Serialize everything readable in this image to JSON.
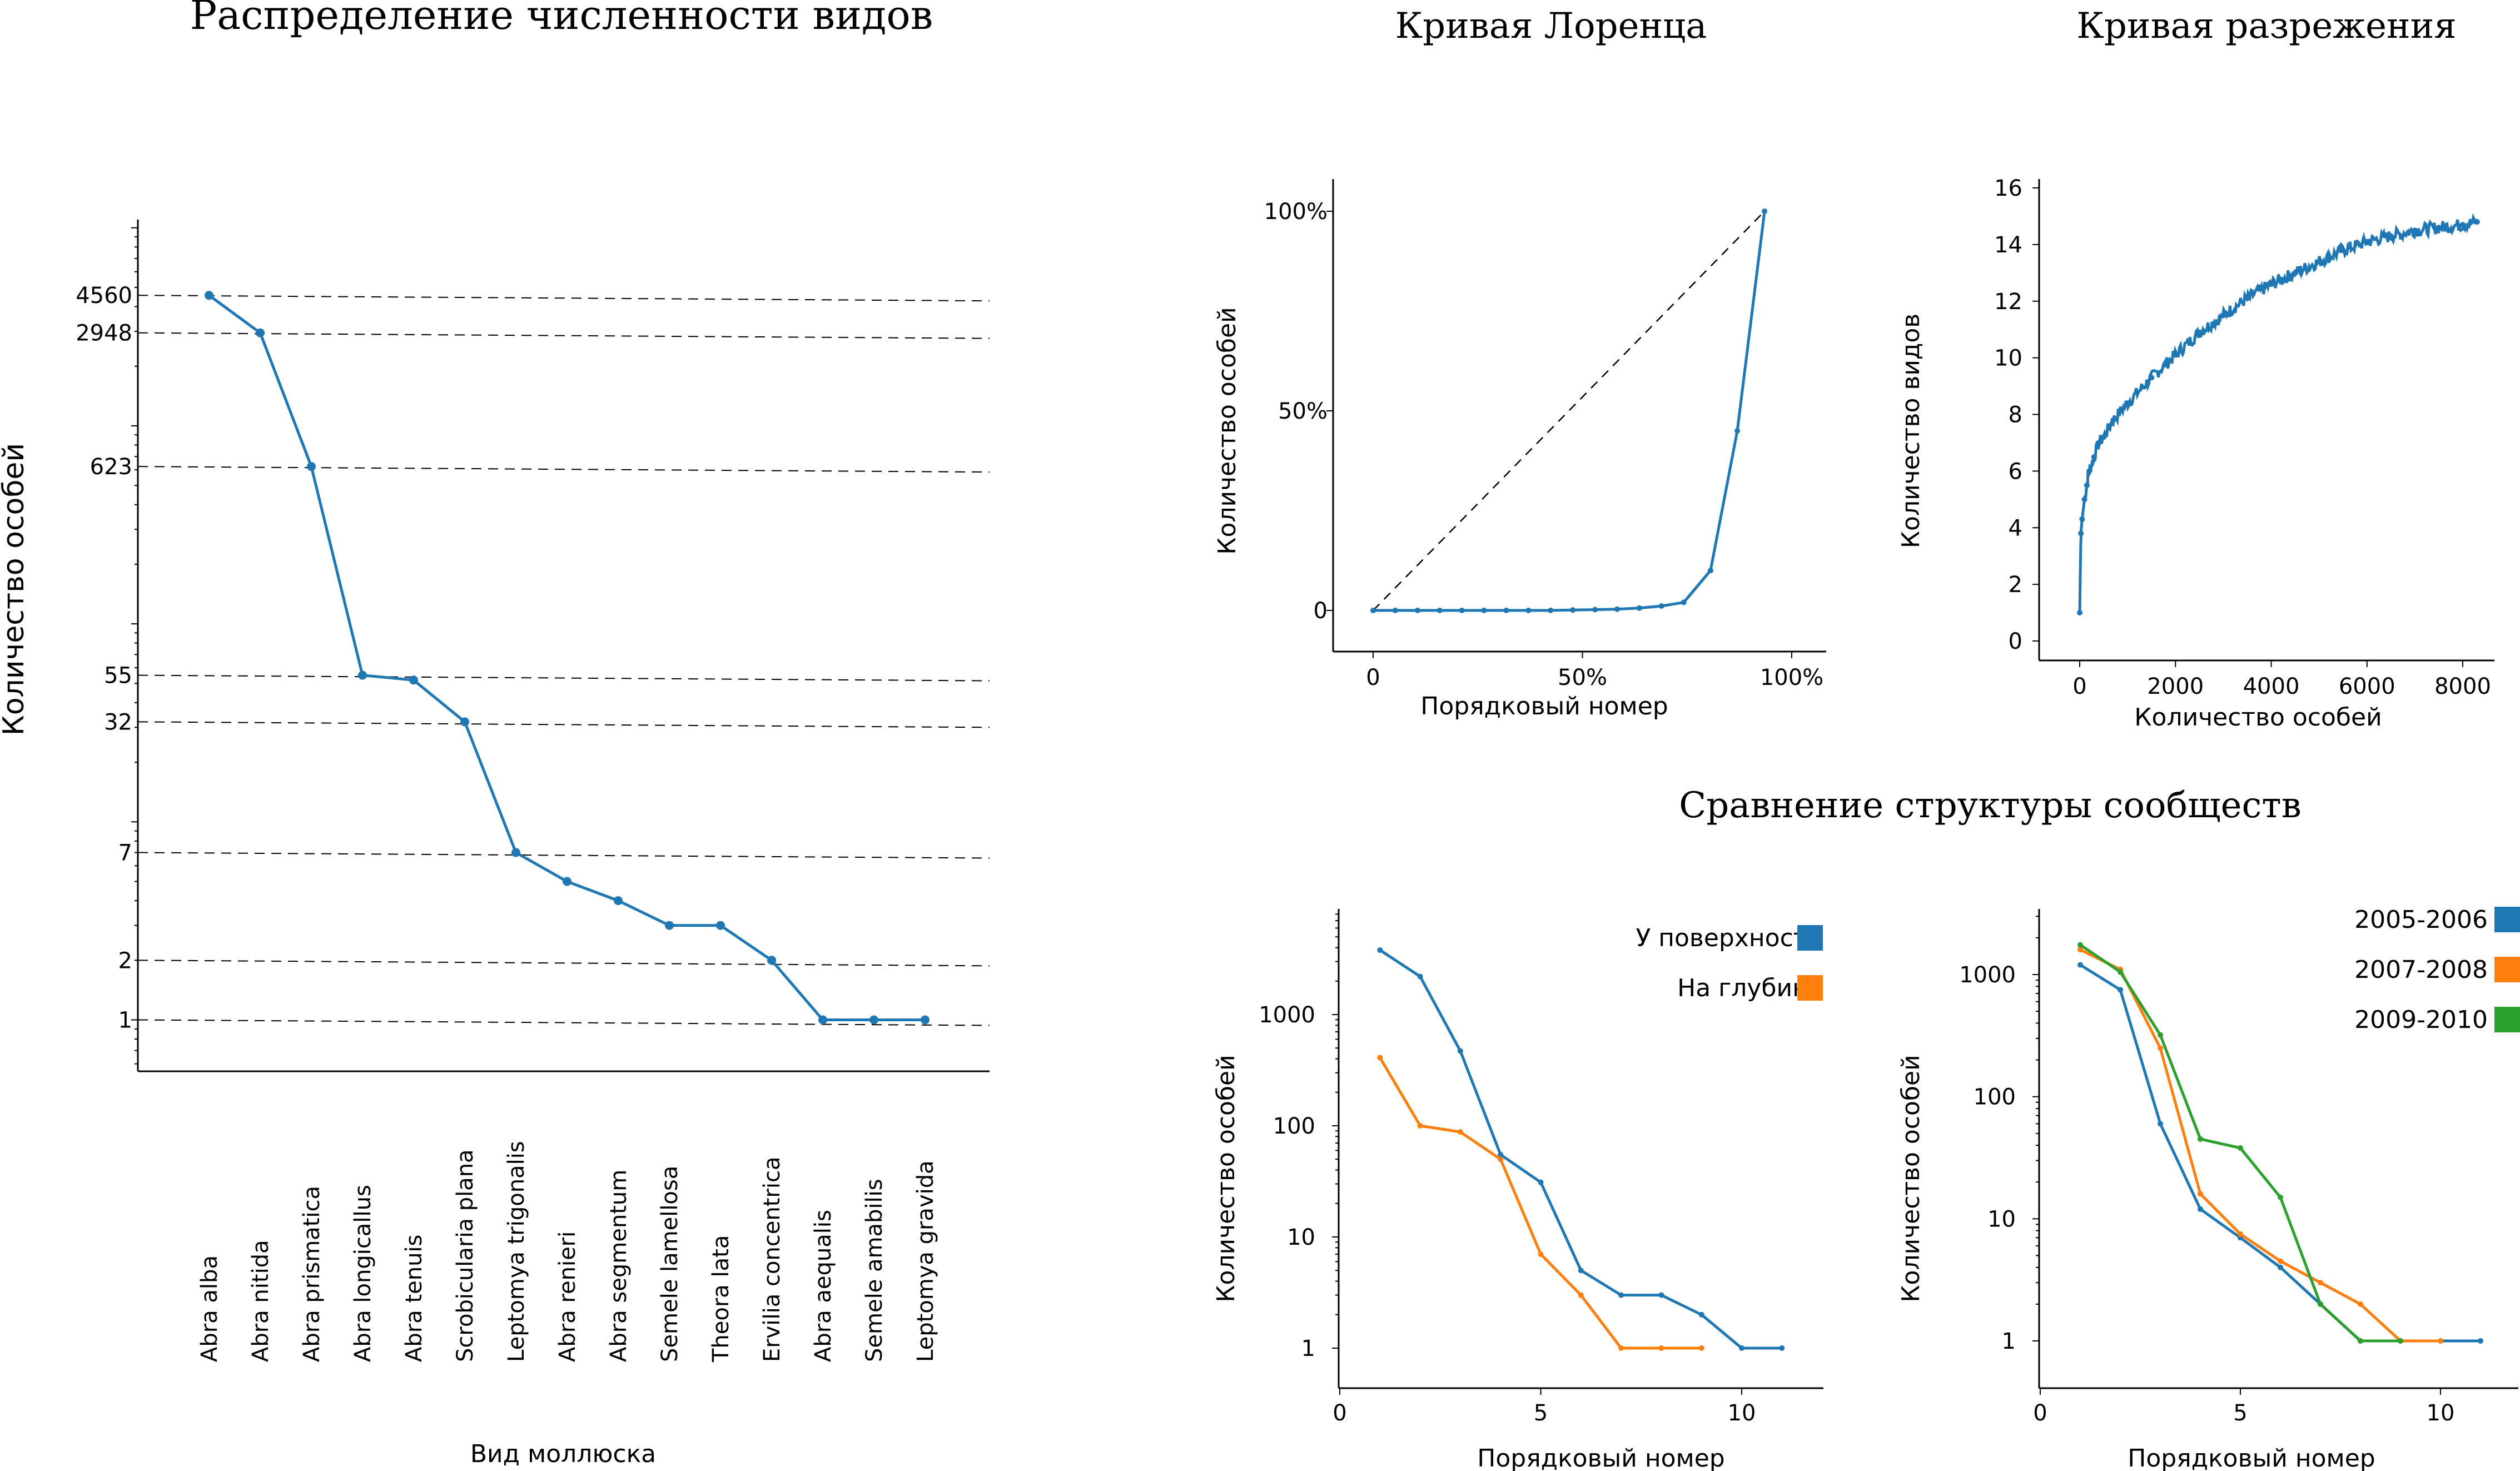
{
  "chart_data": [
    {
      "id": "abundance",
      "type": "line",
      "title": "Распределение численности видов",
      "xlabel": "Вид моллюска",
      "ylabel": "Количество особей",
      "categories": [
        "Abra alba",
        "Abra nitida",
        "Abra prismatica",
        "Abra longicallus",
        "Abra tenuis",
        "Scrobicularia plana",
        "Leptomya trigonalis",
        "Abra renieri",
        "Abra segmentum",
        "Semele lamellosa",
        "Theora lata",
        "Ervilia concentrica",
        "Abra aequalis",
        "Semele amabilis",
        "Leptomya gravida"
      ],
      "values": [
        4560,
        2948,
        623,
        55,
        52,
        32,
        7,
        5,
        4,
        3,
        3,
        2,
        1,
        1,
        1
      ],
      "yscale": "log",
      "yticks": [
        1,
        2,
        7,
        32,
        55,
        623,
        2948,
        4560
      ],
      "ytick_labels": [
        "1",
        "2",
        "7",
        "32",
        "55",
        "623",
        "2948",
        "4560"
      ],
      "grid": "dashed reference lines at labeled values"
    },
    {
      "id": "lorenz",
      "type": "line",
      "title": "Кривая Лоренца",
      "xlabel": "Порядковый номер",
      "ylabel": "Количество особей",
      "x": [
        0,
        0.053,
        0.106,
        0.159,
        0.212,
        0.265,
        0.318,
        0.371,
        0.424,
        0.477,
        0.53,
        0.583,
        0.636,
        0.689,
        0.742,
        0.806,
        0.87,
        0.935
      ],
      "y": [
        0,
        0,
        0,
        0,
        0,
        0,
        0,
        0,
        0,
        0.001,
        0.002,
        0.003,
        0.006,
        0.011,
        0.02,
        0.1,
        0.45,
        1.0
      ],
      "reference_line": "dashed diagonal",
      "xticks": [
        "0",
        "50%",
        "100%"
      ],
      "yticks": [
        "0",
        "50%",
        "100%"
      ]
    },
    {
      "id": "rarefaction",
      "type": "line",
      "title": "Кривая разрежения",
      "xlabel": "Количество особей",
      "ylabel": "Количество видов",
      "x": [
        1,
        25,
        50,
        100,
        150,
        200,
        300,
        400,
        500,
        700,
        1000,
        1500,
        2000,
        2500,
        3000,
        3500,
        4000,
        4500,
        5000,
        5500,
        6000,
        6500,
        7000,
        7500,
        8000,
        8300
      ],
      "y": [
        1,
        3.8,
        4.3,
        5.0,
        5.5,
        6.0,
        6.5,
        7.0,
        7.2,
        7.8,
        8.4,
        9.3,
        10.1,
        10.9,
        11.5,
        12.1,
        12.6,
        13.0,
        13.4,
        13.8,
        14.1,
        14.3,
        14.5,
        14.6,
        14.7,
        14.8
      ],
      "xticks": [
        0,
        2000,
        4000,
        6000,
        8000
      ],
      "yticks": [
        0,
        2,
        4,
        6,
        8,
        10,
        12,
        14,
        16
      ]
    },
    {
      "id": "compare_depth",
      "type": "line",
      "group_title": "Сравнение структуры сообществ",
      "xlabel": "Порядковый номер",
      "ylabel": "Количество особей",
      "yscale": "log",
      "xticks": [
        0,
        5,
        10
      ],
      "yticks": [
        1,
        10,
        100,
        1000
      ],
      "series": [
        {
          "name": "У поверхности",
          "color": "#1f77b4",
          "x": [
            1,
            2,
            3,
            4,
            5,
            6,
            7,
            8,
            9,
            10,
            11
          ],
          "values": [
            3800,
            2200,
            470,
            55,
            31,
            5,
            3,
            3,
            2,
            1,
            1
          ]
        },
        {
          "name": "На глубине",
          "color": "#ff7f0e",
          "x": [
            1,
            2,
            3,
            4,
            5,
            6,
            7,
            8,
            9
          ],
          "values": [
            410,
            100,
            88,
            50,
            7,
            3,
            1,
            1,
            1
          ]
        }
      ]
    },
    {
      "id": "compare_years",
      "type": "line",
      "xlabel": "Порядковый номер",
      "ylabel": "Количество особей",
      "yscale": "log",
      "xticks": [
        0,
        5,
        10
      ],
      "yticks": [
        1,
        10,
        100,
        1000
      ],
      "series": [
        {
          "name": "2005-2006",
          "color": "#1f77b4",
          "x": [
            1,
            2,
            3,
            4,
            5,
            6,
            7,
            8,
            9,
            10,
            11
          ],
          "values": [
            1200,
            750,
            60,
            12,
            7,
            4,
            2,
            1,
            1,
            1,
            1
          ]
        },
        {
          "name": "2007-2008",
          "color": "#ff7f0e",
          "x": [
            1,
            2,
            3,
            4,
            5,
            6,
            7,
            8,
            9,
            10
          ],
          "values": [
            1600,
            1100,
            250,
            16,
            7.5,
            4.5,
            3,
            2,
            1,
            1
          ]
        },
        {
          "name": "2009-2010",
          "color": "#2ca02c",
          "x": [
            1,
            2,
            3,
            4,
            5,
            6,
            7,
            8,
            9
          ],
          "values": [
            1750,
            1050,
            320,
            45,
            38,
            15,
            2,
            1,
            1
          ]
        }
      ]
    }
  ]
}
